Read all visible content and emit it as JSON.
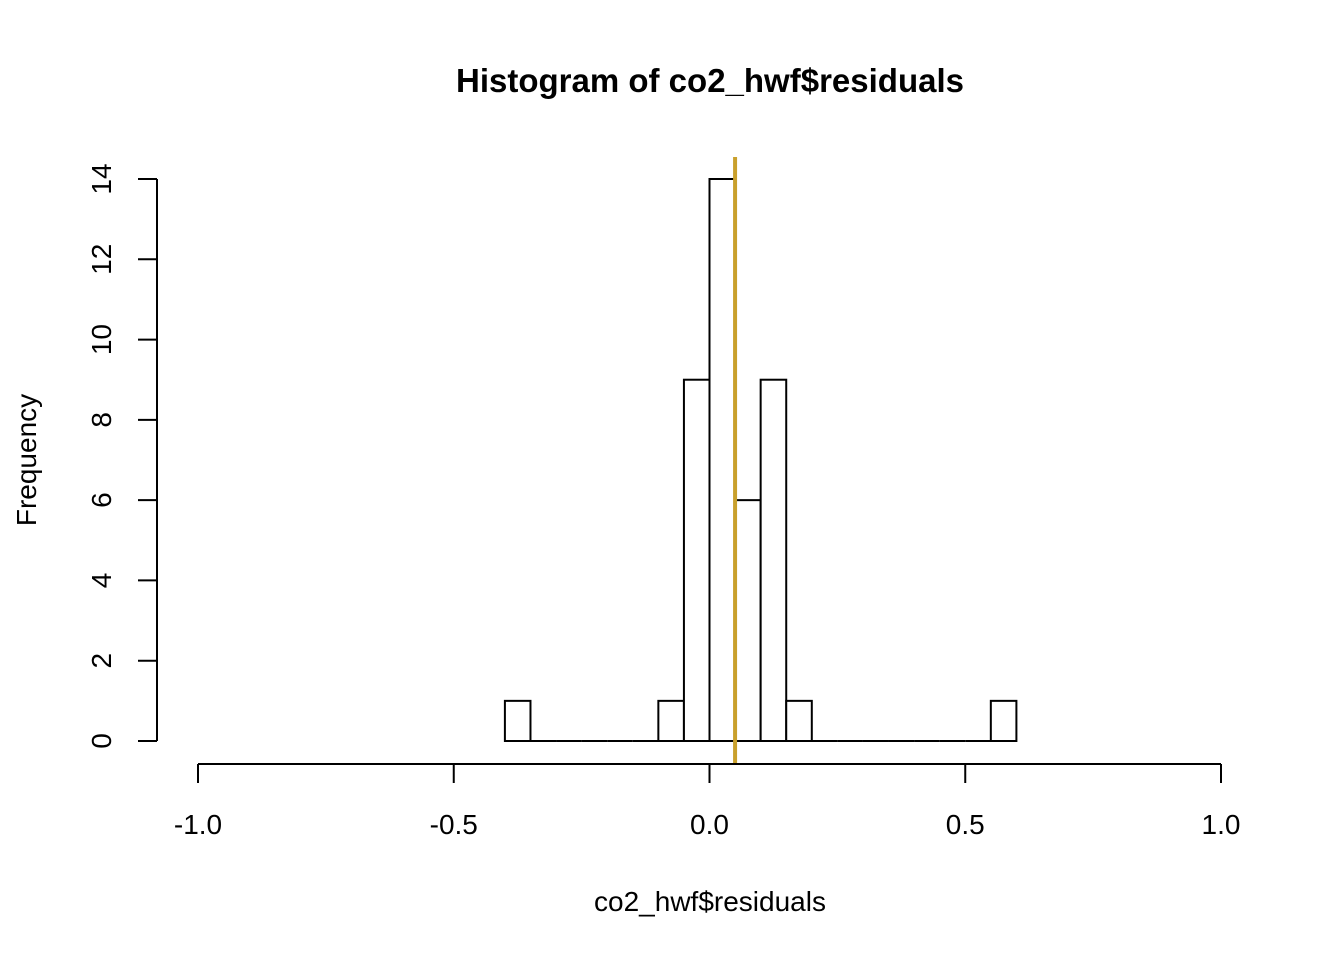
{
  "chart_data": {
    "type": "bar",
    "subtype": "histogram",
    "title": "Histogram of co2_hwf$residuals",
    "xlabel": "co2_hwf$residuals",
    "ylabel": "Frequency",
    "xlim": [
      -1.0,
      1.0
    ],
    "ylim": [
      0,
      14
    ],
    "x_ticks": [
      -1.0,
      -0.5,
      0.0,
      0.5,
      1.0
    ],
    "x_tick_labels": [
      "-1.0",
      "-0.5",
      "0.0",
      "0.5",
      "1.0"
    ],
    "y_ticks": [
      0,
      2,
      4,
      6,
      8,
      10,
      12,
      14
    ],
    "y_tick_labels": [
      "0",
      "2",
      "4",
      "6",
      "8",
      "10",
      "12",
      "14"
    ],
    "bin_width": 0.05,
    "bins": [
      {
        "start": -0.4,
        "end": -0.35,
        "count": 1
      },
      {
        "start": -0.35,
        "end": -0.3,
        "count": 0
      },
      {
        "start": -0.3,
        "end": -0.25,
        "count": 0
      },
      {
        "start": -0.25,
        "end": -0.2,
        "count": 0
      },
      {
        "start": -0.2,
        "end": -0.15,
        "count": 0
      },
      {
        "start": -0.15,
        "end": -0.1,
        "count": 0
      },
      {
        "start": -0.1,
        "end": -0.05,
        "count": 1
      },
      {
        "start": -0.05,
        "end": 0.0,
        "count": 9
      },
      {
        "start": 0.0,
        "end": 0.05,
        "count": 14
      },
      {
        "start": 0.05,
        "end": 0.1,
        "count": 6
      },
      {
        "start": 0.1,
        "end": 0.15,
        "count": 9
      },
      {
        "start": 0.15,
        "end": 0.2,
        "count": 1
      },
      {
        "start": 0.2,
        "end": 0.25,
        "count": 0
      },
      {
        "start": 0.25,
        "end": 0.3,
        "count": 0
      },
      {
        "start": 0.3,
        "end": 0.35,
        "count": 0
      },
      {
        "start": 0.35,
        "end": 0.4,
        "count": 0
      },
      {
        "start": 0.4,
        "end": 0.45,
        "count": 0
      },
      {
        "start": 0.45,
        "end": 0.5,
        "count": 0
      },
      {
        "start": 0.5,
        "end": 0.55,
        "count": 0
      },
      {
        "start": 0.55,
        "end": 0.6,
        "count": 1
      }
    ],
    "reference_line": {
      "x": 0.05,
      "color": "#C9A02C"
    },
    "grid": false,
    "legend": "none"
  }
}
